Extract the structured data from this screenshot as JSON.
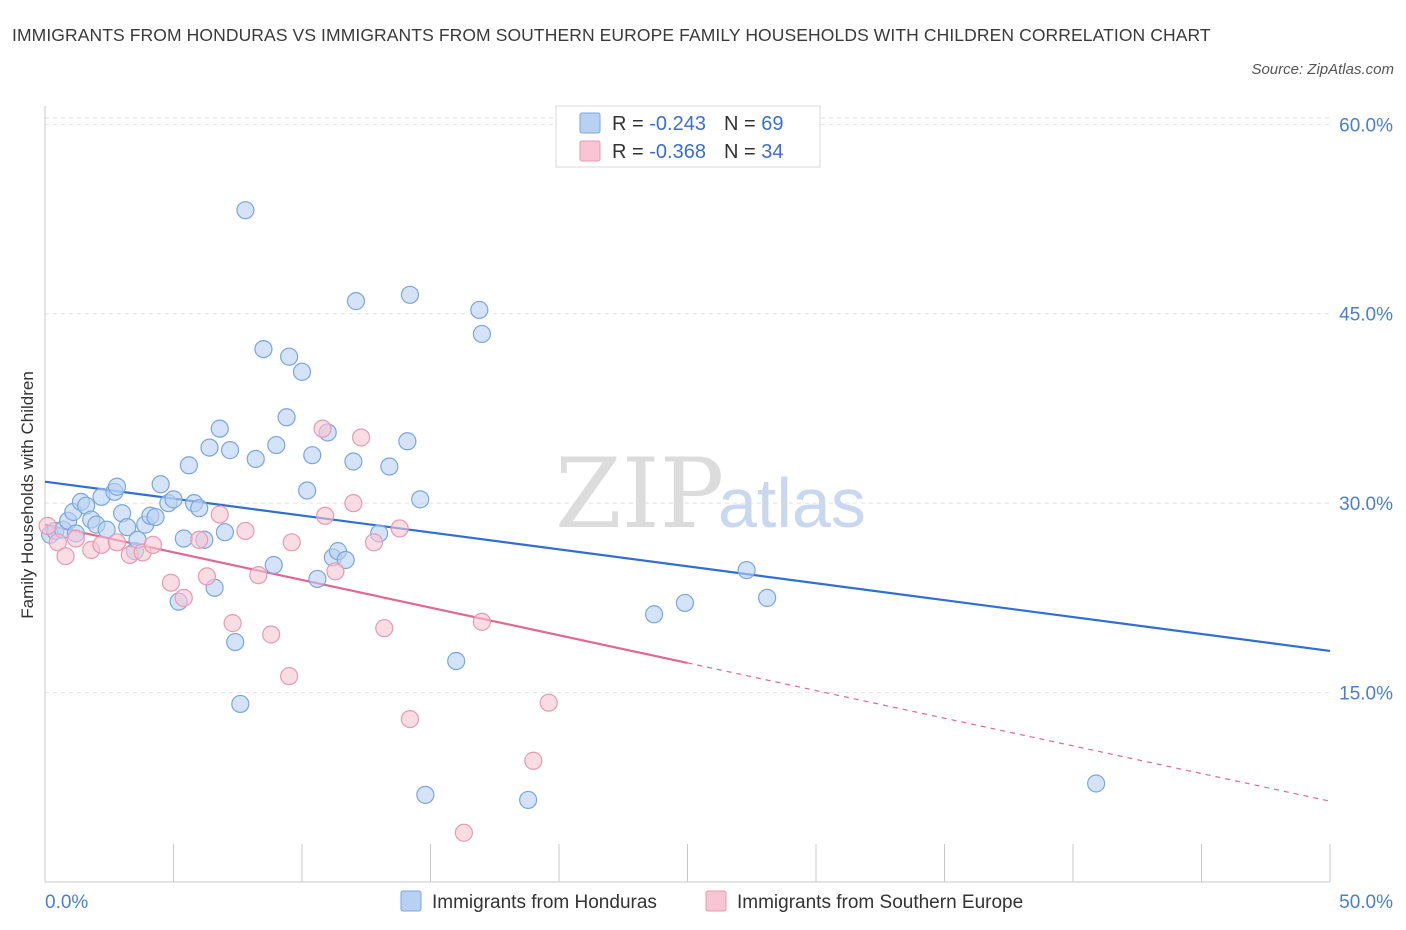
{
  "title": "IMMIGRANTS FROM HONDURAS VS IMMIGRANTS FROM SOUTHERN EUROPE FAMILY HOUSEHOLDS WITH CHILDREN CORRELATION CHART",
  "source": "Source: ZipAtlas.com",
  "watermark": {
    "part1": "ZIP",
    "part2": "atlas"
  },
  "colors": {
    "blue_fill": "#b8d1f3",
    "blue_stroke": "#7aa6e0",
    "blue_line": "#2f6fd0",
    "pink_fill": "#f7c5d3",
    "pink_stroke": "#e89ab2",
    "pink_line": "#e06891",
    "grid": "#dde3ea",
    "axis": "#c9c9c9",
    "label": "#4a7fd0"
  },
  "legend": {
    "rows": [
      {
        "r_label": "R = ",
        "r_value": "-0.243",
        "n_label": "N = ",
        "n_value": "69",
        "color": "blue"
      },
      {
        "r_label": "R = ",
        "r_value": "-0.368",
        "n_label": "N = ",
        "n_value": "34",
        "color": "pink"
      }
    ]
  },
  "chart_data": {
    "type": "scatter",
    "title": "IMMIGRANTS FROM HONDURAS VS IMMIGRANTS FROM SOUTHERN EUROPE FAMILY HOUSEHOLDS WITH CHILDREN CORRELATION CHART",
    "xlabel": "",
    "ylabel": "Family Households with Children",
    "xlim": [
      0,
      50
    ],
    "ylim": [
      0,
      60.5
    ],
    "x_ticks_labels": [
      "0.0%",
      "50.0%"
    ],
    "y_ticks": [
      15,
      30,
      45,
      60
    ],
    "y_ticks_labels": [
      "15.0%",
      "30.0%",
      "45.0%",
      "60.0%"
    ],
    "grid": true,
    "legend_position": "top-center",
    "series": [
      {
        "name": "Immigrants from Honduras",
        "color": "blue",
        "trend": {
          "x0": 0,
          "y0": 31.7,
          "x1": 50,
          "y1": 18.3,
          "dashed_from": null
        },
        "points": [
          [
            0.2,
            27.5
          ],
          [
            0.4,
            27.8
          ],
          [
            0.7,
            27.9
          ],
          [
            0.9,
            28.6
          ],
          [
            1.1,
            29.3
          ],
          [
            1.4,
            30.1
          ],
          [
            1.6,
            29.8
          ],
          [
            1.8,
            28.7
          ],
          [
            2.0,
            28.3
          ],
          [
            2.2,
            30.5
          ],
          [
            2.4,
            27.9
          ],
          [
            2.7,
            30.9
          ],
          [
            2.8,
            31.3
          ],
          [
            3.0,
            29.2
          ],
          [
            3.2,
            28.1
          ],
          [
            3.5,
            26.2
          ],
          [
            3.6,
            27.1
          ],
          [
            3.9,
            28.3
          ],
          [
            4.1,
            29.0
          ],
          [
            4.3,
            28.9
          ],
          [
            4.5,
            31.5
          ],
          [
            4.8,
            30.0
          ],
          [
            5.0,
            30.3
          ],
          [
            5.2,
            22.2
          ],
          [
            5.4,
            27.2
          ],
          [
            5.6,
            33.0
          ],
          [
            5.8,
            30.0
          ],
          [
            6.0,
            29.6
          ],
          [
            6.2,
            27.1
          ],
          [
            6.4,
            34.4
          ],
          [
            6.6,
            23.3
          ],
          [
            6.8,
            35.9
          ],
          [
            7.0,
            27.7
          ],
          [
            7.2,
            34.2
          ],
          [
            7.4,
            19.0
          ],
          [
            7.6,
            14.1
          ],
          [
            7.8,
            53.2
          ],
          [
            8.2,
            33.5
          ],
          [
            8.5,
            42.2
          ],
          [
            8.9,
            25.1
          ],
          [
            9.0,
            34.6
          ],
          [
            9.4,
            36.8
          ],
          [
            9.5,
            41.6
          ],
          [
            10.0,
            40.4
          ],
          [
            10.2,
            31.0
          ],
          [
            10.4,
            33.8
          ],
          [
            10.6,
            24.0
          ],
          [
            11.0,
            35.6
          ],
          [
            11.2,
            25.7
          ],
          [
            11.4,
            26.2
          ],
          [
            11.7,
            25.5
          ],
          [
            12.0,
            33.3
          ],
          [
            12.1,
            46.0
          ],
          [
            13.0,
            27.6
          ],
          [
            13.4,
            32.9
          ],
          [
            14.1,
            34.9
          ],
          [
            14.2,
            46.5
          ],
          [
            14.6,
            30.3
          ],
          [
            14.8,
            6.9
          ],
          [
            16.0,
            17.5
          ],
          [
            16.9,
            45.3
          ],
          [
            17.0,
            43.4
          ],
          [
            18.8,
            6.5
          ],
          [
            23.7,
            21.2
          ],
          [
            24.9,
            22.1
          ],
          [
            27.3,
            24.7
          ],
          [
            28.1,
            22.5
          ],
          [
            40.9,
            7.8
          ],
          [
            1.2,
            27.6
          ]
        ]
      },
      {
        "name": "Immigrants from Southern Europe",
        "color": "pink",
        "trend": {
          "x0": 0,
          "y0": 28.3,
          "x1": 50,
          "y1": 6.4,
          "dashed_from": 25
        },
        "points": [
          [
            0.1,
            28.2
          ],
          [
            0.5,
            26.9
          ],
          [
            0.8,
            25.8
          ],
          [
            1.2,
            27.2
          ],
          [
            1.8,
            26.3
          ],
          [
            2.2,
            26.7
          ],
          [
            2.8,
            26.9
          ],
          [
            3.3,
            25.9
          ],
          [
            3.8,
            26.1
          ],
          [
            4.2,
            26.7
          ],
          [
            4.9,
            23.7
          ],
          [
            5.4,
            22.5
          ],
          [
            6.0,
            27.1
          ],
          [
            6.3,
            24.2
          ],
          [
            6.8,
            29.1
          ],
          [
            7.3,
            20.5
          ],
          [
            7.8,
            27.8
          ],
          [
            8.3,
            24.3
          ],
          [
            8.8,
            19.6
          ],
          [
            9.5,
            16.3
          ],
          [
            9.6,
            26.9
          ],
          [
            10.8,
            35.9
          ],
          [
            10.9,
            29.0
          ],
          [
            11.3,
            24.6
          ],
          [
            12.0,
            30.0
          ],
          [
            12.3,
            35.2
          ],
          [
            12.8,
            26.9
          ],
          [
            13.2,
            20.1
          ],
          [
            13.8,
            28.0
          ],
          [
            14.2,
            12.9
          ],
          [
            16.3,
            3.9
          ],
          [
            17.0,
            20.6
          ],
          [
            19.0,
            9.6
          ],
          [
            19.6,
            14.2
          ]
        ]
      }
    ]
  },
  "bottom_legend": [
    "Immigrants from Honduras",
    "Immigrants from Southern Europe"
  ]
}
